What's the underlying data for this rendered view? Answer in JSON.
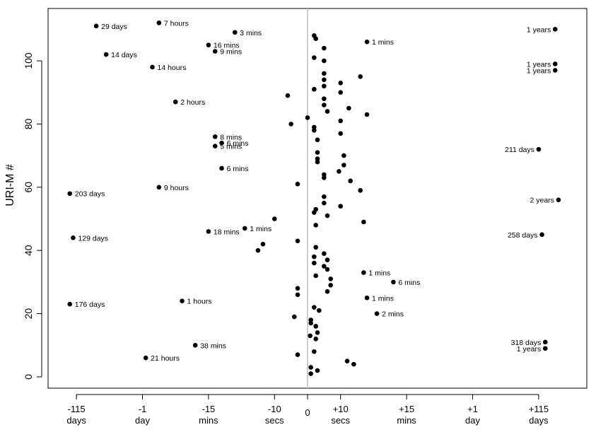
{
  "chart_data": {
    "type": "scatter",
    "title": "",
    "xlabel": "",
    "ylabel": "URI-M #",
    "ylim": [
      -2,
      114
    ],
    "y_ticks": [
      0,
      20,
      40,
      60,
      80,
      100
    ],
    "grid": false,
    "legend": "none",
    "colors": {
      "points": "#000000",
      "zero_line": "#bbbbbb",
      "frame": "#000000"
    },
    "x_axis": {
      "scale": "piecewise time distance from zero (days, hours, mins, secs)",
      "ticks": [
        {
          "pos": -7,
          "top": "-115",
          "bottom": "days"
        },
        {
          "pos": -5,
          "top": "-1",
          "bottom": "day"
        },
        {
          "pos": -3,
          "top": "-15",
          "bottom": "mins"
        },
        {
          "pos": -1,
          "top": "-10",
          "bottom": "secs"
        },
        {
          "pos": 0,
          "top": "",
          "bottom": "0"
        },
        {
          "pos": 1,
          "top": "+10",
          "bottom": "secs"
        },
        {
          "pos": 3,
          "top": "+15",
          "bottom": "mins"
        },
        {
          "pos": 5,
          "top": "+1",
          "bottom": "day"
        },
        {
          "pos": 7,
          "top": "+115",
          "bottom": "days"
        }
      ]
    },
    "points": [
      {
        "x": 0.1,
        "y": 1
      },
      {
        "x": 0.3,
        "y": 2
      },
      {
        "x": 0.1,
        "y": 3
      },
      {
        "x": 1.4,
        "y": 4
      },
      {
        "x": 1.2,
        "y": 5
      },
      {
        "x": -4.9,
        "y": 6,
        "label": "21 hours"
      },
      {
        "x": -0.3,
        "y": 7
      },
      {
        "x": 0.2,
        "y": 8
      },
      {
        "x": 7.2,
        "y": 9,
        "label": "1 years"
      },
      {
        "x": -3.4,
        "y": 10,
        "label": "38 mins"
      },
      {
        "x": 7.2,
        "y": 11,
        "label": "318 days"
      },
      {
        "x": 0.25,
        "y": 12
      },
      {
        "x": 0.08,
        "y": 13
      },
      {
        "x": 0.3,
        "y": 14
      },
      {
        "x": 0.25,
        "y": 16
      },
      {
        "x": 0.1,
        "y": 17
      },
      {
        "x": 0.1,
        "y": 18
      },
      {
        "x": -0.4,
        "y": 19
      },
      {
        "x": 2.1,
        "y": 20,
        "label": "2 mins"
      },
      {
        "x": 0.35,
        "y": 21
      },
      {
        "x": 0.2,
        "y": 22
      },
      {
        "x": -7.2,
        "y": 23,
        "label": "176 days"
      },
      {
        "x": -3.8,
        "y": 24,
        "label": "1 hours"
      },
      {
        "x": 1.8,
        "y": 25,
        "label": "1 mins"
      },
      {
        "x": -0.3,
        "y": 26
      },
      {
        "x": 0.6,
        "y": 27
      },
      {
        "x": -0.3,
        "y": 28
      },
      {
        "x": 0.7,
        "y": 29
      },
      {
        "x": 2.6,
        "y": 30,
        "label": "6 mins"
      },
      {
        "x": 0.7,
        "y": 31
      },
      {
        "x": 0.25,
        "y": 32
      },
      {
        "x": 1.7,
        "y": 33,
        "label": "1 mins"
      },
      {
        "x": 0.6,
        "y": 34
      },
      {
        "x": 0.5,
        "y": 35
      },
      {
        "x": 0.2,
        "y": 36
      },
      {
        "x": 0.6,
        "y": 37
      },
      {
        "x": 0.2,
        "y": 38
      },
      {
        "x": 0.5,
        "y": 39
      },
      {
        "x": -1.5,
        "y": 40
      },
      {
        "x": 0.25,
        "y": 41
      },
      {
        "x": -1.35,
        "y": 42
      },
      {
        "x": -0.3,
        "y": 43
      },
      {
        "x": -7.1,
        "y": 44,
        "label": "129 days"
      },
      {
        "x": 7.1,
        "y": 45,
        "label": "258 days"
      },
      {
        "x": -3.0,
        "y": 46,
        "label": "18 mins"
      },
      {
        "x": -1.9,
        "y": 47,
        "label": "1 mins"
      },
      {
        "x": 0.25,
        "y": 48
      },
      {
        "x": 1.7,
        "y": 49
      },
      {
        "x": -1.0,
        "y": 50
      },
      {
        "x": 0.6,
        "y": 51
      },
      {
        "x": 0.2,
        "y": 52
      },
      {
        "x": 0.25,
        "y": 53
      },
      {
        "x": 1.0,
        "y": 54
      },
      {
        "x": 0.5,
        "y": 55
      },
      {
        "x": 7.6,
        "y": 56,
        "label": "2 years"
      },
      {
        "x": 0.5,
        "y": 57
      },
      {
        "x": -7.2,
        "y": 58,
        "label": "203 days"
      },
      {
        "x": 1.6,
        "y": 59
      },
      {
        "x": -4.5,
        "y": 60,
        "label": "9 hours"
      },
      {
        "x": -0.3,
        "y": 61
      },
      {
        "x": 1.3,
        "y": 62
      },
      {
        "x": 0.5,
        "y": 63
      },
      {
        "x": 0.5,
        "y": 64
      },
      {
        "x": 0.95,
        "y": 65
      },
      {
        "x": -2.6,
        "y": 66,
        "label": "6 mins"
      },
      {
        "x": 1.1,
        "y": 67
      },
      {
        "x": 0.3,
        "y": 68
      },
      {
        "x": 0.3,
        "y": 69
      },
      {
        "x": 1.1,
        "y": 70
      },
      {
        "x": 0.3,
        "y": 71
      },
      {
        "x": 7.0,
        "y": 72,
        "label": "211 days"
      },
      {
        "x": -2.8,
        "y": 73,
        "label": "5 mins"
      },
      {
        "x": -2.6,
        "y": 74,
        "label": "6 mins"
      },
      {
        "x": 0.3,
        "y": 75
      },
      {
        "x": -2.8,
        "y": 76,
        "label": "8 mins"
      },
      {
        "x": 1.0,
        "y": 77
      },
      {
        "x": 0.2,
        "y": 78
      },
      {
        "x": 0.2,
        "y": 79
      },
      {
        "x": -0.5,
        "y": 80
      },
      {
        "x": 1.0,
        "y": 81
      },
      {
        "x": 0.0,
        "y": 82
      },
      {
        "x": 1.8,
        "y": 83
      },
      {
        "x": 0.6,
        "y": 84
      },
      {
        "x": 1.25,
        "y": 85
      },
      {
        "x": 0.5,
        "y": 86
      },
      {
        "x": -4.0,
        "y": 87,
        "label": "2 hours"
      },
      {
        "x": 0.5,
        "y": 88
      },
      {
        "x": -0.6,
        "y": 89
      },
      {
        "x": 1.0,
        "y": 90
      },
      {
        "x": 0.2,
        "y": 91
      },
      {
        "x": 0.5,
        "y": 92
      },
      {
        "x": 1.0,
        "y": 93
      },
      {
        "x": 0.5,
        "y": 94
      },
      {
        "x": 1.6,
        "y": 95
      },
      {
        "x": 0.5,
        "y": 96
      },
      {
        "x": 7.5,
        "y": 97,
        "label": "1 years"
      },
      {
        "x": -4.7,
        "y": 98,
        "label": "14 hours"
      },
      {
        "x": 7.5,
        "y": 99,
        "label": "1 years"
      },
      {
        "x": 0.5,
        "y": 100
      },
      {
        "x": 0.2,
        "y": 101
      },
      {
        "x": -6.1,
        "y": 102,
        "label": "14 days"
      },
      {
        "x": -2.8,
        "y": 103,
        "label": "9 mins"
      },
      {
        "x": 0.5,
        "y": 104
      },
      {
        "x": -3.0,
        "y": 105,
        "label": "16 mins"
      },
      {
        "x": 1.8,
        "y": 106,
        "label": "1 mins"
      },
      {
        "x": 0.25,
        "y": 107
      },
      {
        "x": 0.2,
        "y": 108
      },
      {
        "x": -2.2,
        "y": 109,
        "label": "3 mins"
      },
      {
        "x": 7.5,
        "y": 110,
        "label": "1 years"
      },
      {
        "x": -6.4,
        "y": 111,
        "label": "29 days"
      },
      {
        "x": -4.5,
        "y": 112,
        "label": "7 hours"
      }
    ]
  }
}
